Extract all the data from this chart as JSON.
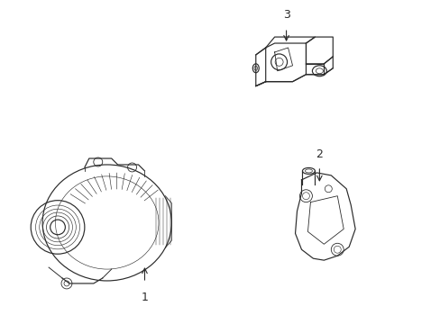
{
  "bg_color": "#ffffff",
  "line_color": "#2a2a2a",
  "lw": 0.85,
  "labels": [
    "1",
    "2",
    "3"
  ],
  "label_fontsize": 9,
  "arrow_color": "#2a2a2a"
}
